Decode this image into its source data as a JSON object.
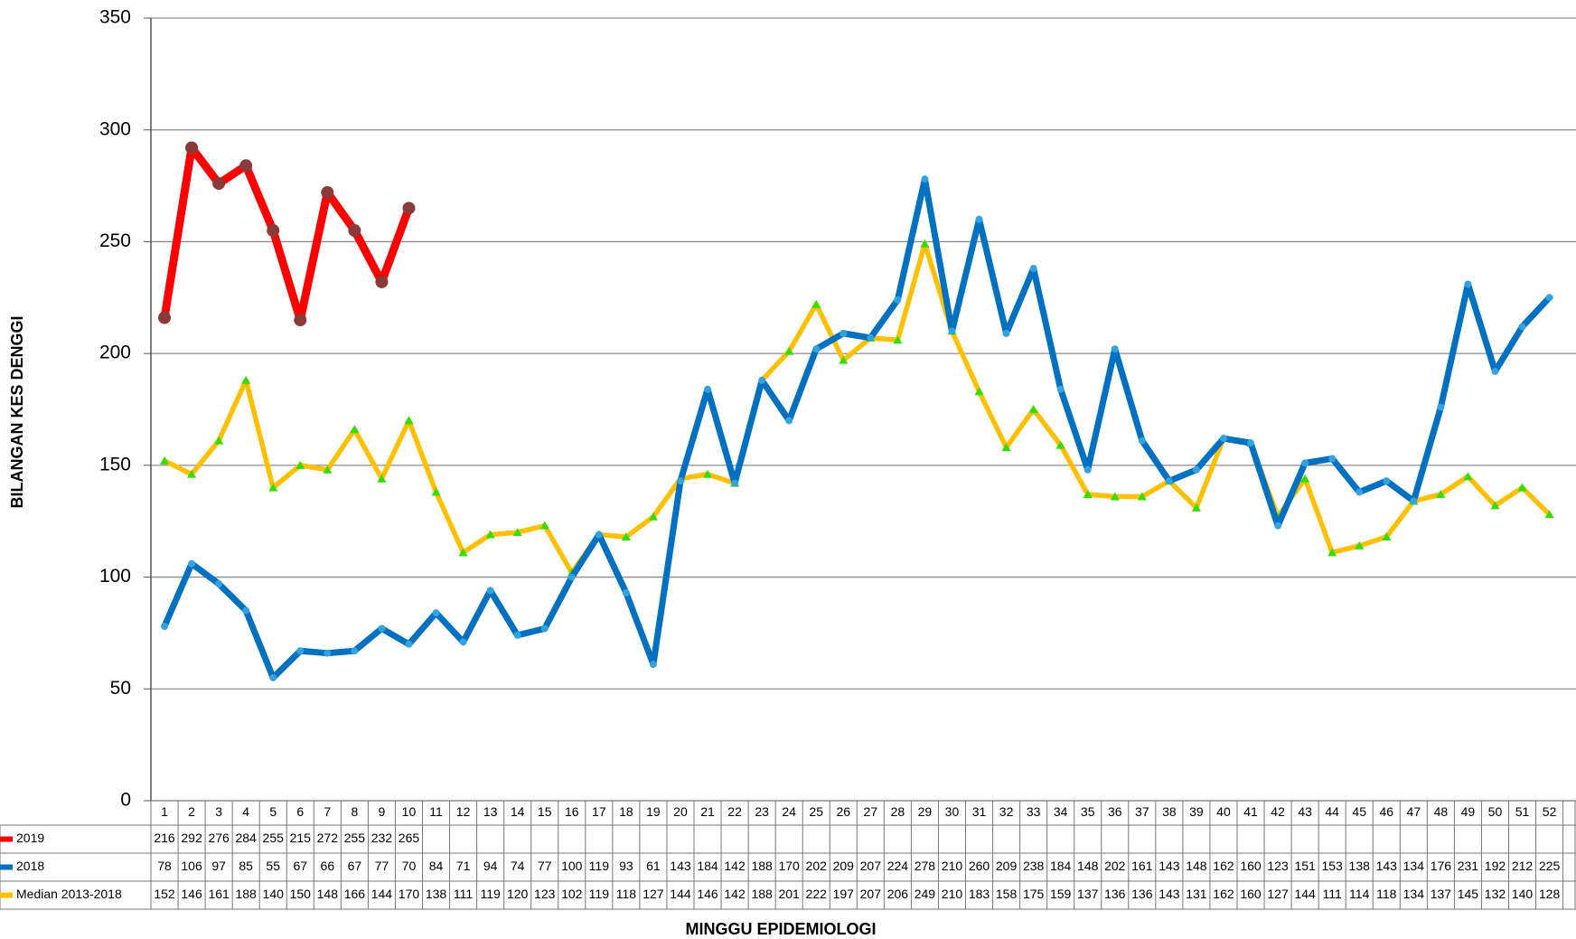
{
  "chart_data": {
    "type": "line",
    "y_label": "BILANGAN KES DENGGI",
    "x_label": "MINGGU EPIDEMIOLOGI",
    "categories": [
      "1",
      "2",
      "3",
      "4",
      "5",
      "6",
      "7",
      "8",
      "9",
      "10",
      "11",
      "12",
      "13",
      "14",
      "15",
      "16",
      "17",
      "18",
      "19",
      "20",
      "21",
      "22",
      "23",
      "24",
      "25",
      "26",
      "27",
      "28",
      "29",
      "30",
      "31",
      "32",
      "33",
      "34",
      "35",
      "36",
      "37",
      "38",
      "39",
      "40",
      "41",
      "42",
      "43",
      "44",
      "45",
      "46",
      "47",
      "48",
      "49",
      "50",
      "51",
      "52"
    ],
    "ylim": [
      0,
      350
    ],
    "yticks": [
      0,
      50,
      100,
      150,
      200,
      250,
      300,
      350
    ],
    "grid": true,
    "data_table": true,
    "series": [
      {
        "name": "2019",
        "color": "#ff0000",
        "marker": "circle",
        "marker_color": "#8b3a3a",
        "values": [
          216,
          292,
          276,
          284,
          255,
          215,
          272,
          255,
          232,
          265,
          null,
          null,
          null,
          null,
          null,
          null,
          null,
          null,
          null,
          null,
          null,
          null,
          null,
          null,
          null,
          null,
          null,
          null,
          null,
          null,
          null,
          null,
          null,
          null,
          null,
          null,
          null,
          null,
          null,
          null,
          null,
          null,
          null,
          null,
          null,
          null,
          null,
          null,
          null,
          null,
          null,
          null
        ]
      },
      {
        "name": "2018",
        "color": "#0070c0",
        "marker": "circle",
        "marker_color": "#33a3e0",
        "values": [
          78,
          106,
          97,
          85,
          55,
          67,
          66,
          67,
          77,
          70,
          84,
          71,
          94,
          74,
          77,
          100,
          119,
          93,
          61,
          143,
          184,
          142,
          188,
          170,
          202,
          209,
          207,
          224,
          278,
          210,
          260,
          209,
          238,
          184,
          148,
          202,
          161,
          143,
          148,
          162,
          160,
          123,
          151,
          153,
          138,
          143,
          134,
          176,
          231,
          192,
          212,
          225
        ]
      },
      {
        "name": "Median 2013-2018",
        "color": "#ffc000",
        "marker": "triangle",
        "marker_color": "#33dd00",
        "values": [
          152,
          146,
          161,
          188,
          140,
          150,
          148,
          166,
          144,
          170,
          138,
          111,
          119,
          120,
          123,
          102,
          119,
          118,
          127,
          144,
          146,
          142,
          188,
          201,
          222,
          197,
          207,
          206,
          249,
          210,
          183,
          158,
          175,
          159,
          137,
          136,
          136,
          143,
          131,
          162,
          160,
          127,
          144,
          111,
          114,
          118,
          134,
          137,
          145,
          132,
          140,
          128
        ]
      }
    ]
  }
}
